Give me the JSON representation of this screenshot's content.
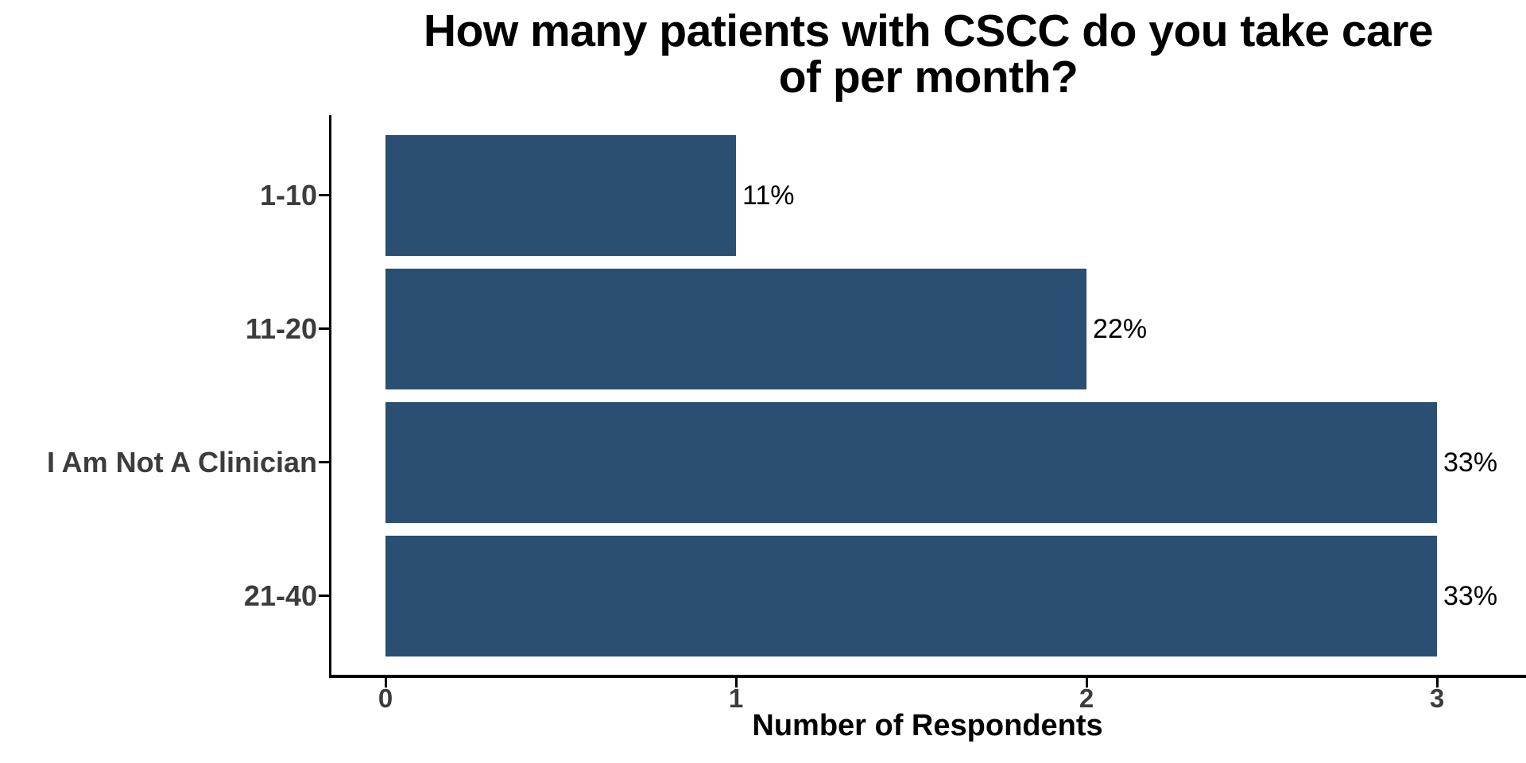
{
  "chart_data": {
    "type": "bar",
    "orientation": "horizontal",
    "title": "How many patients with CSCC do you take care of per month?",
    "title_lines": [
      "How many patients with CSCC do you take care",
      "of per month?"
    ],
    "categories": [
      "1-10",
      "11-20",
      "I Am Not A Clinician",
      "21-40"
    ],
    "values": [
      1,
      2,
      3,
      3
    ],
    "bar_labels": [
      "11%",
      "22%",
      "33%",
      "33%"
    ],
    "xlabel": "Number of Respondents",
    "ylabel": "",
    "x_ticks": [
      "0",
      "1",
      "2",
      "3"
    ],
    "x_tick_values": [
      0,
      1,
      2,
      3
    ],
    "xlim": [
      0,
      3.25
    ],
    "grid": false,
    "legend": "none",
    "colors": {
      "bar": "#2A4F72",
      "axis_line": "#000000",
      "axis_text": "#3C3C3C",
      "value_label_text": "#000000",
      "title_text": "#000000",
      "background": "#FFFFFF"
    }
  }
}
